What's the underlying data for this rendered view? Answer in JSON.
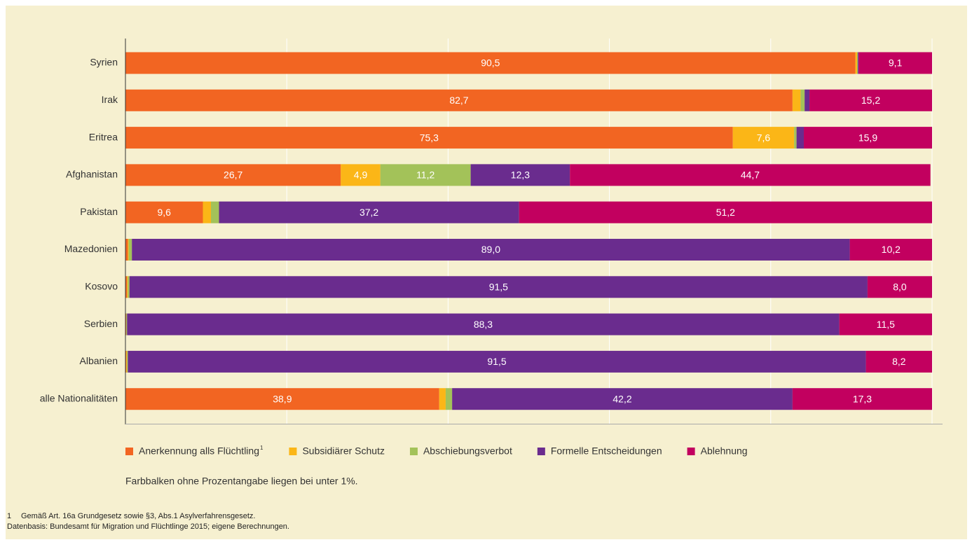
{
  "chart_data": {
    "type": "stacked-barh",
    "categories": [
      "Syrien",
      "Irak",
      "Eritrea",
      "Afghanistan",
      "Pakistan",
      "Mazedonien",
      "Kosovo",
      "Serbien",
      "Albanien",
      "alle Nationalitäten"
    ],
    "series": [
      {
        "name": "Anerkennung alls Flüchtling",
        "color": "#f26522",
        "values": [
          90.5,
          82.7,
          75.3,
          26.7,
          9.6,
          0.3,
          0.2,
          0.1,
          0.1,
          38.9
        ],
        "value_labels": [
          "90,5",
          "82,7",
          "75,3",
          "26,7",
          "9,6",
          null,
          null,
          null,
          null,
          "38,9"
        ]
      },
      {
        "name": "Subsidiärer Schutz",
        "color": "#fbb617",
        "values": [
          0.2,
          1.0,
          7.6,
          4.9,
          1.0,
          0.1,
          0.1,
          0,
          0.1,
          0.8
        ],
        "value_labels": [
          null,
          null,
          "7,6",
          "4,9",
          null,
          null,
          null,
          null,
          null,
          null
        ]
      },
      {
        "name": "Abschiebungsverbot",
        "color": "#a3c259",
        "values": [
          0.1,
          0.5,
          0.3,
          11.2,
          1.0,
          0.4,
          0.2,
          0.1,
          0.1,
          0.8
        ],
        "value_labels": [
          null,
          null,
          null,
          "11,2",
          null,
          null,
          null,
          null,
          null,
          null
        ]
      },
      {
        "name": "Formelle Entscheidungen",
        "color": "#6a2c8e",
        "values": [
          0.1,
          0.6,
          0.9,
          12.3,
          37.2,
          89.0,
          91.5,
          88.3,
          91.5,
          42.2
        ],
        "value_labels": [
          null,
          null,
          null,
          "12,3",
          "37,2",
          "89,0",
          "91,5",
          "88,3",
          "91,5",
          "42,2"
        ]
      },
      {
        "name": "Ablehnung",
        "color": "#c2005f",
        "values": [
          9.1,
          15.2,
          15.9,
          44.7,
          51.2,
          10.2,
          8.0,
          11.5,
          8.2,
          17.3
        ],
        "value_labels": [
          "9,1",
          "15,2",
          "15,9",
          "44,7",
          "51,2",
          "10,2",
          "8,0",
          "11,5",
          "8,2",
          "17,3"
        ]
      }
    ],
    "xlim": [
      0,
      100
    ],
    "xticks": [
      0,
      20,
      40,
      60,
      80,
      100
    ],
    "grid": true,
    "legend": "bottom",
    "note": "Farbbalken ohne Prozentangabe liegen bei unter 1%.",
    "footnotes": [
      {
        "marker": "1",
        "text": "Gemäß Art. 16a Grundgesetz sowie §3, Abs.1 Asylverfahrensgesetz."
      }
    ],
    "source": "Datenbasis: Bundesamt für Migration und Flüchtlinge 2015; eigene Berechnungen."
  }
}
